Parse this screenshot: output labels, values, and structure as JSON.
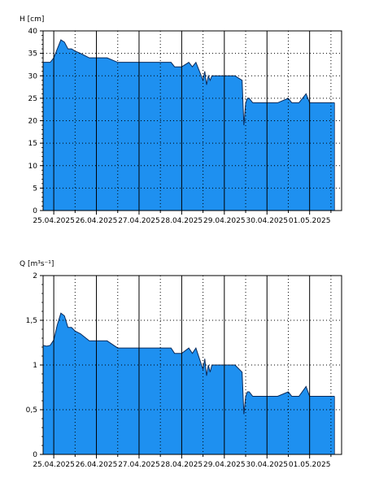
{
  "chart_data": [
    {
      "type": "area",
      "ylabel": "H [cm]",
      "ylim": [
        0,
        40
      ],
      "yticks": [
        "0",
        "5",
        "10",
        "15",
        "20",
        "25",
        "30",
        "35",
        "40"
      ],
      "xlim": [
        "24.04.2025 18:00",
        "01.05.2025 18:00"
      ],
      "xticks": [
        "25.04.2025",
        "26.04.2025",
        "27.04.2025",
        "28.04.2025",
        "29.04.2025",
        "30.04.2025",
        "01.05.2025"
      ],
      "grid": true,
      "fill_color": "#1E90F0",
      "line_color": "#0a2a5a",
      "series": [
        {
          "x": [
            "24.04.2025 18:00",
            "24.04.2025 20:00",
            "24.04.2025 22:00",
            "25.04.2025 00:00",
            "25.04.2025 02:00",
            "25.04.2025 04:00",
            "25.04.2025 06:00",
            "25.04.2025 08:00",
            "25.04.2025 10:00",
            "25.04.2025 12:00",
            "25.04.2025 15:00",
            "25.04.2025 20:00",
            "26.04.2025 00:00",
            "26.04.2025 06:00",
            "26.04.2025 12:00",
            "26.04.2025 20:00",
            "27.04.2025 00:00",
            "27.04.2025 12:00",
            "27.04.2025 18:00",
            "27.04.2025 20:00",
            "28.04.2025 00:00",
            "28.04.2025 04:00",
            "28.04.2025 06:00",
            "28.04.2025 08:00",
            "28.04.2025 10:00",
            "28.04.2025 12:00",
            "28.04.2025 13:00",
            "28.04.2025 14:00",
            "28.04.2025 15:00",
            "28.04.2025 16:00",
            "28.04.2025 17:00",
            "28.04.2025 18:00",
            "28.04.2025 21:00",
            "29.04.2025 00:00",
            "29.04.2025 06:00",
            "29.04.2025 10:00",
            "29.04.2025 11:00",
            "29.04.2025 12:00",
            "29.04.2025 13:00",
            "29.04.2025 14:00",
            "29.04.2025 16:00",
            "29.04.2025 20:00",
            "30.04.2025 00:00",
            "30.04.2025 06:00",
            "30.04.2025 12:00",
            "30.04.2025 14:00",
            "30.04.2025 16:00",
            "30.04.2025 18:00",
            "30.04.2025 22:00",
            "01.05.2025 00:00",
            "01.05.2025 06:00",
            "01.05.2025 12:00",
            "01.05.2025 14:00"
          ],
          "y": [
            33,
            33,
            33,
            34,
            36,
            38,
            37.5,
            36,
            36,
            35.5,
            35,
            34,
            34,
            34,
            33,
            33,
            33,
            33,
            33,
            32,
            32,
            33,
            32,
            33,
            31,
            29,
            31,
            28,
            30,
            29,
            30,
            30,
            30,
            30,
            30,
            29,
            19,
            24,
            25,
            25,
            24,
            24,
            24,
            24,
            25,
            24,
            24,
            24,
            26,
            24,
            24,
            24,
            24
          ]
        }
      ]
    },
    {
      "type": "area",
      "ylabel": "Q [m³s⁻¹]",
      "ylim": [
        0,
        2
      ],
      "yticks": [
        "0",
        "0,5",
        "1",
        "1,5",
        "2"
      ],
      "xlim": [
        "24.04.2025 18:00",
        "01.05.2025 18:00"
      ],
      "xticks": [
        "25.04.2025",
        "26.04.2025",
        "27.04.2025",
        "28.04.2025",
        "29.04.2025",
        "30.04.2025",
        "01.05.2025"
      ],
      "grid": true,
      "fill_color": "#1E90F0",
      "line_color": "#0a2a5a",
      "series": [
        {
          "x": [
            "24.04.2025 18:00",
            "24.04.2025 20:00",
            "24.04.2025 22:00",
            "25.04.2025 00:00",
            "25.04.2025 02:00",
            "25.04.2025 04:00",
            "25.04.2025 06:00",
            "25.04.2025 08:00",
            "25.04.2025 10:00",
            "25.04.2025 12:00",
            "25.04.2025 15:00",
            "25.04.2025 20:00",
            "26.04.2025 00:00",
            "26.04.2025 06:00",
            "26.04.2025 12:00",
            "26.04.2025 20:00",
            "27.04.2025 00:00",
            "27.04.2025 12:00",
            "27.04.2025 18:00",
            "27.04.2025 20:00",
            "28.04.2025 00:00",
            "28.04.2025 04:00",
            "28.04.2025 06:00",
            "28.04.2025 08:00",
            "28.04.2025 10:00",
            "28.04.2025 12:00",
            "28.04.2025 13:00",
            "28.04.2025 14:00",
            "28.04.2025 15:00",
            "28.04.2025 16:00",
            "28.04.2025 17:00",
            "28.04.2025 18:00",
            "28.04.2025 21:00",
            "29.04.2025 00:00",
            "29.04.2025 06:00",
            "29.04.2025 10:00",
            "29.04.2025 11:00",
            "29.04.2025 12:00",
            "29.04.2025 13:00",
            "29.04.2025 14:00",
            "29.04.2025 16:00",
            "29.04.2025 20:00",
            "30.04.2025 00:00",
            "30.04.2025 06:00",
            "30.04.2025 12:00",
            "30.04.2025 14:00",
            "30.04.2025 16:00",
            "30.04.2025 18:00",
            "30.04.2025 22:00",
            "01.05.2025 00:00",
            "01.05.2025 06:00",
            "01.05.2025 12:00",
            "01.05.2025 14:00"
          ],
          "y": [
            1.22,
            1.21,
            1.22,
            1.28,
            1.45,
            1.58,
            1.55,
            1.42,
            1.42,
            1.38,
            1.35,
            1.27,
            1.27,
            1.27,
            1.19,
            1.19,
            1.19,
            1.19,
            1.19,
            1.13,
            1.13,
            1.19,
            1.13,
            1.19,
            1.07,
            0.95,
            1.07,
            0.88,
            1.0,
            0.92,
            1.0,
            1.0,
            1.0,
            1.0,
            1.0,
            0.92,
            0.45,
            0.65,
            0.7,
            0.7,
            0.65,
            0.65,
            0.65,
            0.65,
            0.7,
            0.65,
            0.65,
            0.65,
            0.76,
            0.65,
            0.65,
            0.65,
            0.65
          ]
        }
      ]
    }
  ]
}
